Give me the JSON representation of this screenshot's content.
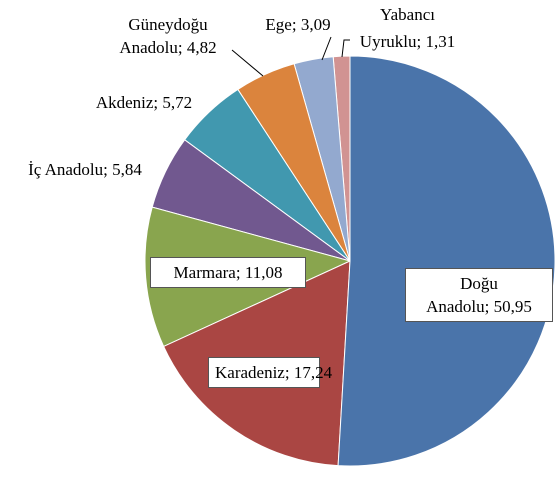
{
  "chart_data": {
    "type": "pie",
    "categories": [
      "Doğu Anadolu;",
      "Karadeniz;",
      "Marmara;",
      "İç Anadolu;",
      "Akdeniz;",
      "Güneydoğu Anadolu;",
      "Ege;",
      "Yabancı Uyruklu;"
    ],
    "values": [
      50.95,
      17.24,
      11.08,
      5.84,
      5.72,
      4.82,
      3.09,
      1.31
    ],
    "value_labels": [
      "50,95",
      "17,24",
      "11,08",
      "5,84",
      "5,72",
      "4,82",
      "3,09",
      "1,31"
    ],
    "colors": [
      "#4a74aa",
      "#aa4643",
      "#89a54e",
      "#71588f",
      "#4198af",
      "#db843d",
      "#93a9cf",
      "#d19392"
    ]
  }
}
